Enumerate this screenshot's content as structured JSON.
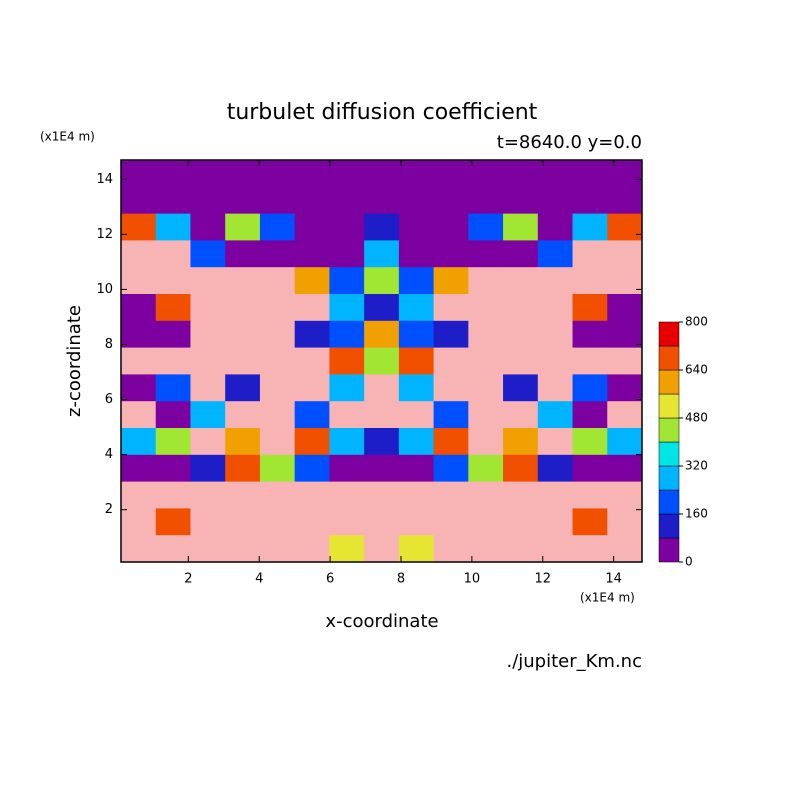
{
  "chart_data": {
    "type": "contour",
    "title": "turbulet diffusion coefficient",
    "subtitle": "t=8640.0 y=0.0",
    "x_label": "x-coordinate",
    "y_label": "z-coordinate",
    "x_unit": "(x1E4 m)",
    "y_unit": "(x1E4 m)",
    "source": "./jupiter_Km.nc",
    "xlim": [
      0.1,
      14.8
    ],
    "ylim": [
      0.1,
      14.7
    ],
    "xticks": [
      2,
      4,
      6,
      8,
      10,
      12,
      14
    ],
    "yticks": [
      2,
      4,
      6,
      8,
      10,
      12,
      14
    ],
    "levels": [
      0,
      80,
      160,
      240,
      320,
      400,
      480,
      560,
      640,
      720,
      800
    ],
    "level_ticks": [
      0,
      160,
      320,
      480,
      640,
      800
    ],
    "colors": [
      "#7d00a0",
      "#1e1ec8",
      "#0050ff",
      "#00b4ff",
      "#00e6e6",
      "#a0e632",
      "#e6e632",
      "#f0a000",
      "#f05000",
      "#e60000",
      "#f8b4b4"
    ],
    "z": [
      [
        0,
        0,
        0,
        0,
        0,
        0,
        0,
        0,
        0,
        0,
        0,
        0,
        0,
        0,
        0
      ],
      [
        0,
        0,
        0,
        0,
        0,
        0,
        0,
        0,
        0,
        0,
        0,
        0,
        0,
        0,
        0
      ],
      [
        700,
        300,
        0,
        400,
        200,
        0,
        0,
        100,
        0,
        0,
        200,
        400,
        0,
        300,
        700
      ],
      [
        800,
        800,
        200,
        0,
        0,
        0,
        0,
        300,
        0,
        0,
        0,
        0,
        200,
        800,
        800
      ],
      [
        800,
        800,
        800,
        800,
        800,
        600,
        200,
        400,
        200,
        600,
        800,
        800,
        800,
        800,
        800
      ],
      [
        0,
        700,
        800,
        800,
        800,
        800,
        300,
        100,
        300,
        800,
        800,
        800,
        800,
        700,
        0
      ],
      [
        0,
        0,
        800,
        800,
        800,
        100,
        200,
        600,
        200,
        100,
        800,
        800,
        800,
        0,
        0
      ],
      [
        800,
        800,
        800,
        800,
        800,
        800,
        700,
        400,
        700,
        800,
        800,
        800,
        800,
        800,
        800
      ],
      [
        0,
        200,
        800,
        100,
        800,
        800,
        300,
        800,
        300,
        800,
        800,
        100,
        800,
        200,
        0
      ],
      [
        800,
        0,
        300,
        800,
        800,
        200,
        800,
        800,
        800,
        200,
        800,
        800,
        300,
        0,
        800
      ],
      [
        300,
        400,
        800,
        600,
        800,
        700,
        300,
        100,
        300,
        700,
        800,
        600,
        800,
        400,
        300
      ],
      [
        0,
        0,
        100,
        700,
        400,
        200,
        0,
        0,
        0,
        200,
        400,
        700,
        100,
        0,
        0
      ],
      [
        800,
        800,
        800,
        800,
        800,
        800,
        800,
        800,
        800,
        800,
        800,
        800,
        800,
        800,
        800
      ],
      [
        800,
        700,
        800,
        800,
        800,
        800,
        800,
        800,
        800,
        800,
        800,
        800,
        800,
        700,
        800
      ],
      [
        800,
        800,
        800,
        800,
        800,
        800,
        500,
        800,
        500,
        800,
        800,
        800,
        800,
        800,
        800
      ]
    ]
  }
}
